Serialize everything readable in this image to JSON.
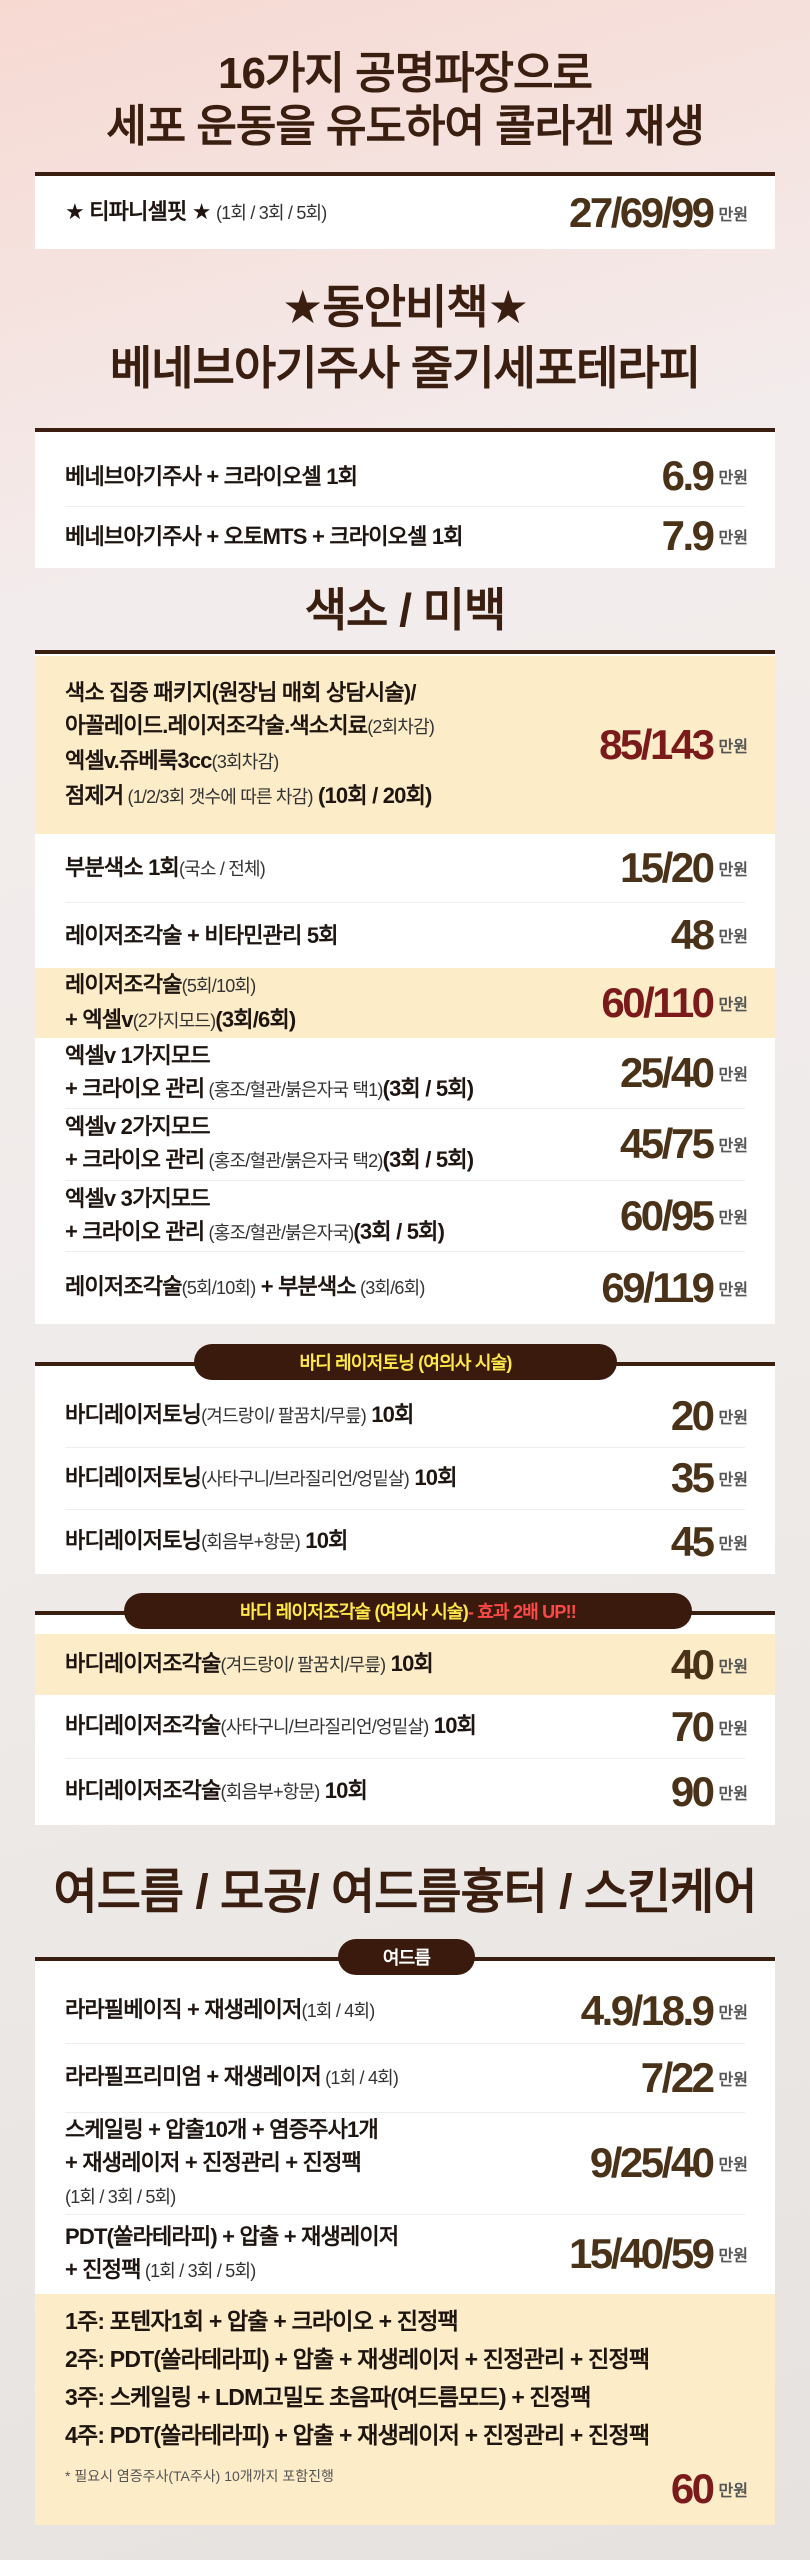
{
  "title": {
    "line1": "16가지 공명파장으로",
    "line2": "세포 운동을 유도하여 콜라겐 재생"
  },
  "unit": "만원",
  "colors": {
    "heading": "#3a1f10",
    "price": "#4a3219",
    "price_red": "#7a1a1a",
    "highlight": "#fdecc8",
    "pill_bg": "#3a1a0c",
    "pill_text": "#ffe94a",
    "pill_alert": "#ff4848"
  },
  "headings": {
    "dongan_line1": "★동안비책★",
    "dongan_line2": "베네브아기주사 줄기세포테라피",
    "pigment": "색소 / 미백",
    "acne": "여드름 / 모공/ 여드름흉터 / 스킨케어"
  },
  "cards": [
    {
      "id": "tiffany",
      "rows": [
        {
          "lines": [
            [
              {
                "text": "★ 티파니셀핏 ★ "
              },
              {
                "text": "(1회 / 3회 / 5회)",
                "light": true
              }
            ]
          ],
          "price": "27/69/99"
        }
      ]
    },
    {
      "id": "benev",
      "rows": [
        {
          "lines": [
            [
              {
                "text": "베네브아기주사 + 크라이오셀 1회"
              }
            ]
          ],
          "price": "6.9"
        },
        {
          "lines": [
            [
              {
                "text": "베네브아기주사 + 오토MTS + 크라이오셀 1회"
              }
            ]
          ],
          "price": "7.9"
        }
      ]
    },
    {
      "id": "pigment",
      "rows": [
        {
          "highlight": true,
          "red": true,
          "lines": [
            [
              {
                "text": "색소 집중 패키지(원장님 매회 상담시술)/"
              }
            ],
            [
              {
                "text": "아꼴레이드.레이저조각술.색소치료"
              },
              {
                "text": "(2회차감)",
                "light": true
              }
            ],
            [
              {
                "text": "엑셀v.쥬베룩3cc"
              },
              {
                "text": "(3회차감)",
                "light": true
              }
            ],
            [
              {
                "text": "점제거"
              },
              {
                "text": " (1/2/3회 갯수에 따른 차감)",
                "light": true
              },
              {
                "text": " (10회 / 20회)"
              }
            ]
          ],
          "price": "85/143"
        },
        {
          "lines": [
            [
              {
                "text": "부분색소 1회"
              },
              {
                "text": "(국소 / 전체)",
                "light": true
              }
            ]
          ],
          "price": "15/20"
        },
        {
          "lines": [
            [
              {
                "text": "레이저조각술 + 비타민관리 5회"
              }
            ]
          ],
          "price": "48"
        },
        {
          "highlight": true,
          "red": true,
          "lines": [
            [
              {
                "text": "레이저조각술"
              },
              {
                "text": "(5회/10회)",
                "light": true
              }
            ],
            [
              {
                "text": "+ 엑셀v"
              },
              {
                "text": "(2가지모드)",
                "light": true
              },
              {
                "text": "(3회/6회)"
              }
            ]
          ],
          "price": "60/110"
        },
        {
          "lines": [
            [
              {
                "text": "엑셀v 1가지모드"
              }
            ],
            [
              {
                "text": "+ 크라이오 관리"
              },
              {
                "text": " (홍조/혈관/붉은자국 택1)",
                "light": true
              },
              {
                "text": "(3회 / 5회)"
              }
            ]
          ],
          "price": "25/40"
        },
        {
          "lines": [
            [
              {
                "text": "엑셀v 2가지모드"
              }
            ],
            [
              {
                "text": "+ 크라이오 관리"
              },
              {
                "text": " (홍조/혈관/붉은자국 택2)",
                "light": true
              },
              {
                "text": "(3회 / 5회)"
              }
            ]
          ],
          "price": "45/75"
        },
        {
          "lines": [
            [
              {
                "text": "엑셀v 3가지모드"
              }
            ],
            [
              {
                "text": "+ 크라이오 관리"
              },
              {
                "text": " (홍조/혈관/붉은자국)",
                "light": true
              },
              {
                "text": "(3회 / 5회)"
              }
            ]
          ],
          "price": "60/95"
        },
        {
          "lines": [
            [
              {
                "text": "레이저조각술"
              },
              {
                "text": "(5회/10회)",
                "light": true
              },
              {
                "text": " + 부분색소"
              },
              {
                "text": " (3회/6회)",
                "light": true
              }
            ]
          ],
          "price": "69/119"
        }
      ]
    },
    {
      "id": "toning",
      "pill": {
        "text": "바디 레이저토닝 (여의사 시술)"
      },
      "rows": [
        {
          "lines": [
            [
              {
                "text": "바디레이저토닝"
              },
              {
                "text": "(겨드랑이/ 팔꿈치/무릎)",
                "light": true
              },
              {
                "text": " 10회"
              }
            ]
          ],
          "price": "20"
        },
        {
          "lines": [
            [
              {
                "text": "바디레이저토닝"
              },
              {
                "text": "(사타구니/브라질리언/엉밑살)",
                "light": true
              },
              {
                "text": " 10회"
              }
            ]
          ],
          "price": "35"
        },
        {
          "lines": [
            [
              {
                "text": "바디레이저토닝"
              },
              {
                "text": "(회음부+항문)",
                "light": true
              },
              {
                "text": " 10회"
              }
            ]
          ],
          "price": "45"
        }
      ]
    },
    {
      "id": "sculpt",
      "pill": {
        "text": "바디 레이저조각술 (여의사 시술)",
        "alert": " - 효과 2배 UP!!"
      },
      "rows": [
        {
          "highlight": true,
          "lines": [
            [
              {
                "text": "바디레이저조각술"
              },
              {
                "text": "(겨드랑이/ 팔꿈치/무릎)",
                "light": true
              },
              {
                "text": " 10회"
              }
            ]
          ],
          "price": "40"
        },
        {
          "lines": [
            [
              {
                "text": "바디레이저조각술"
              },
              {
                "text": "(사타구니/브라질리언/엉밑살)",
                "light": true
              },
              {
                "text": " 10회"
              }
            ]
          ],
          "price": "70"
        },
        {
          "lines": [
            [
              {
                "text": "바디레이저조각술"
              },
              {
                "text": "(회음부+항문)",
                "light": true
              },
              {
                "text": " 10회"
              }
            ]
          ],
          "price": "90"
        }
      ]
    },
    {
      "id": "acne",
      "pill": {
        "text": "여드름"
      },
      "rows": [
        {
          "lines": [
            [
              {
                "text": "라라필베이직 + 재생레이저"
              },
              {
                "text": "(1회 / 4회)",
                "light": true
              }
            ]
          ],
          "price": "4.9/18.9"
        },
        {
          "lines": [
            [
              {
                "text": "라라필프리미엄 + 재생레이저"
              },
              {
                "text": " (1회 / 4회)",
                "light": true
              }
            ]
          ],
          "price": "7/22"
        },
        {
          "lines": [
            [
              {
                "text": "스케일링 + 압출10개 + 염증주사1개"
              }
            ],
            [
              {
                "text": "+ 재생레이저 + 진정관리 + 진정팩"
              }
            ],
            [
              {
                "text": "(1회 / 3회 / 5회)",
                "light": true
              }
            ]
          ],
          "price": "9/25/40"
        },
        {
          "lines": [
            [
              {
                "text": "PDT(쏠라테라피) + 압출 + 재생레이저"
              }
            ],
            [
              {
                "text": "+ 진정팩"
              },
              {
                "text": " (1회 / 3회 / 5회)",
                "light": true
              }
            ]
          ],
          "price": "15/40/59"
        },
        {
          "highlight": true,
          "red": true,
          "package": true,
          "lines": [
            [
              {
                "text": "1주: 포텐자1회 + 압출 + 크라이오 + 진정팩"
              }
            ],
            [
              {
                "text": "2주: PDT(쏠라테라피) + 압출 + 재생레이저 + 진정관리 + 진정팩"
              }
            ],
            [
              {
                "text": "3주: 스케일링 + LDM고밀도 초음파(여드름모드) + 진정팩"
              }
            ],
            [
              {
                "text": "4주: PDT(쏠라테라피) + 압출 + 재생레이저 + 진정관리 + 진정팩"
              }
            ]
          ],
          "note": "* 필요시 염증주사(TA주사) 10개까지 포함진행",
          "price": "60"
        }
      ]
    }
  ]
}
